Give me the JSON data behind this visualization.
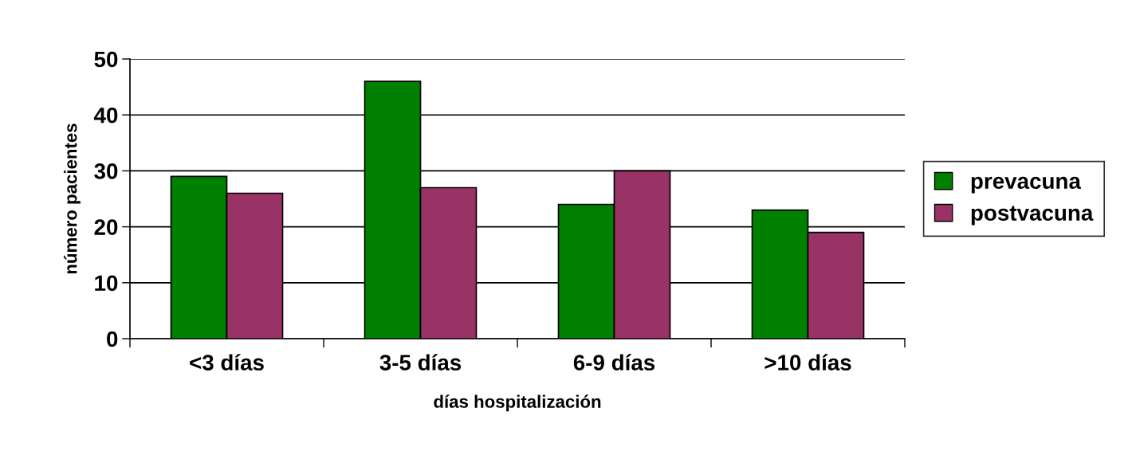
{
  "chart_data": {
    "type": "bar",
    "xlabel": "días hospitalización",
    "ylabel": "número pacientes",
    "categories": [
      "<3 días",
      "3-5 días",
      "6-9 días",
      ">10 días"
    ],
    "series": [
      {
        "name": "prevacuna",
        "color": "#008000",
        "values": [
          29,
          46,
          24,
          23
        ]
      },
      {
        "name": "postvacuna",
        "color": "#993366",
        "values": [
          26,
          27,
          30,
          19
        ]
      }
    ],
    "ylim": [
      0,
      50
    ],
    "yticks": [
      0,
      10,
      20,
      30,
      40,
      50
    ],
    "grid": "y",
    "legend": "right"
  }
}
